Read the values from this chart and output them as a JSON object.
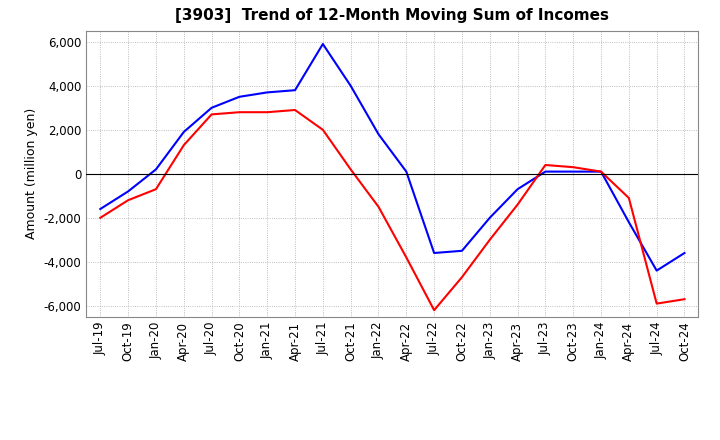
{
  "title": "[3903]  Trend of 12-Month Moving Sum of Incomes",
  "ylabel": "Amount (million yen)",
  "title_fontsize": 11,
  "label_fontsize": 9,
  "tick_fontsize": 8.5,
  "line_colors": {
    "ordinary": "#0000FF",
    "net": "#FF0000"
  },
  "ylim": [
    -6500,
    6500
  ],
  "yticks": [
    -6000,
    -4000,
    -2000,
    0,
    2000,
    4000,
    6000
  ],
  "background_color": "#FFFFFF",
  "grid_color": "#AAAAAA",
  "ordinary_income": [
    -1600,
    -800,
    200,
    1900,
    3000,
    3500,
    3700,
    3800,
    5900,
    4000,
    1800,
    100,
    -3600,
    -3500,
    -2000,
    -700,
    100,
    100,
    100,
    -2200,
    -4400,
    -3600
  ],
  "net_income": [
    -2000,
    -1200,
    -700,
    1300,
    2700,
    2800,
    2800,
    2900,
    2000,
    200,
    -1500,
    -3800,
    -6200,
    -4700,
    -3000,
    -1400,
    400,
    300,
    100,
    -1100,
    -5900,
    -5700
  ],
  "xtick_labels": [
    "Jul-19",
    "Oct-19",
    "Jan-20",
    "Apr-20",
    "Jul-20",
    "Oct-20",
    "Jan-21",
    "Apr-21",
    "Jul-21",
    "Oct-21",
    "Jan-22",
    "Apr-22",
    "Jul-22",
    "Oct-22",
    "Jan-23",
    "Apr-23",
    "Jul-23",
    "Oct-23",
    "Jan-24",
    "Apr-24",
    "Jul-24",
    "Oct-24"
  ]
}
